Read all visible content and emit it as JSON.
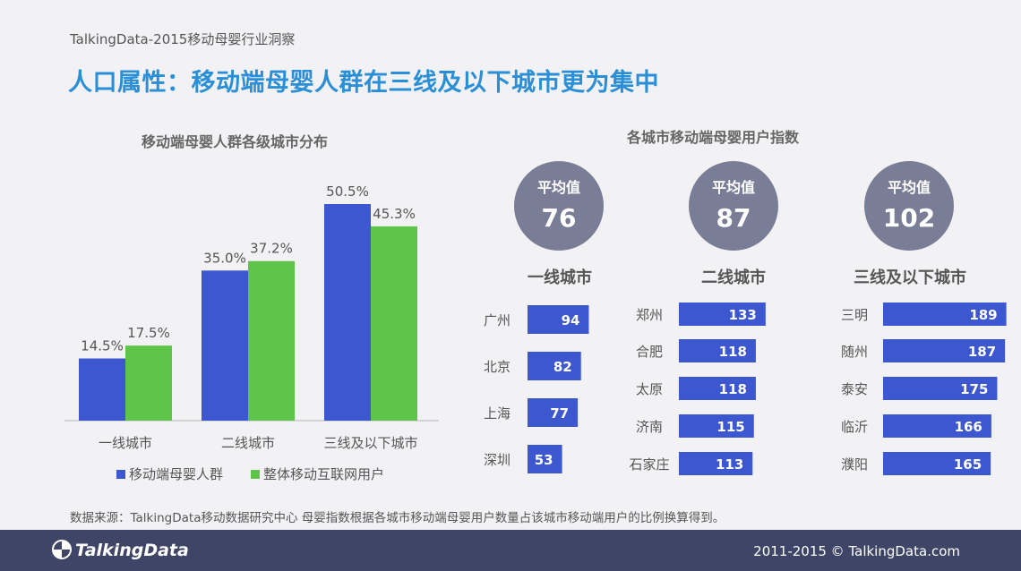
{
  "header": {
    "report_label": "TalkingData-2015移动母婴行业洞察",
    "title": "人口属性：移动端母婴人群在三线及以下城市更为集中"
  },
  "colors": {
    "mom_baby": "#3c57d0",
    "overall": "#5fc44a",
    "circle": "#7a7d96",
    "index_bar": "#3c57d0",
    "title_blue": "#2a8fd6"
  },
  "chart_data": [
    {
      "type": "bar",
      "title": "移动端母婴人群各级城市分布",
      "categories": [
        "一线城市",
        "二线城市",
        "三线及以下城市"
      ],
      "series": [
        {
          "name": "移动端母婴人群",
          "values": [
            14.5,
            35.0,
            50.5
          ],
          "labels": [
            "14.5%",
            "35.0%",
            "50.5%"
          ]
        },
        {
          "name": "整体移动互联网用户",
          "values": [
            17.5,
            37.2,
            45.3
          ],
          "labels": [
            "17.5%",
            "37.2%",
            "45.3%"
          ]
        }
      ],
      "ylim": [
        0,
        55
      ],
      "grid": false,
      "legend": "bottom"
    },
    {
      "type": "bar",
      "orientation": "horizontal",
      "title": "各城市移动端母婴用户指数",
      "avg_label": "平均值",
      "groups": [
        {
          "name": "一线城市",
          "average": 76,
          "categories": [
            "广州",
            "北京",
            "上海",
            "深圳"
          ],
          "values": [
            94,
            82,
            77,
            53
          ]
        },
        {
          "name": "二线城市",
          "average": 87,
          "categories": [
            "郑州",
            "合肥",
            "太原",
            "济南",
            "石家庄"
          ],
          "values": [
            133,
            118,
            118,
            115,
            113
          ]
        },
        {
          "name": "三线及以下城市",
          "average": 102,
          "categories": [
            "三明",
            "随州",
            "泰安",
            "临沂",
            "濮阳"
          ],
          "values": [
            189,
            187,
            175,
            166,
            165
          ]
        }
      ]
    }
  ],
  "footer": {
    "source_note": "数据来源：TalkingData移动数据研究中心 母婴指数根据各城市移动端母婴用户数量占该城市移动端用户的比例换算得到。",
    "logo_text": "TalkingData",
    "copyright": "2011-2015 © TalkingData.com"
  }
}
